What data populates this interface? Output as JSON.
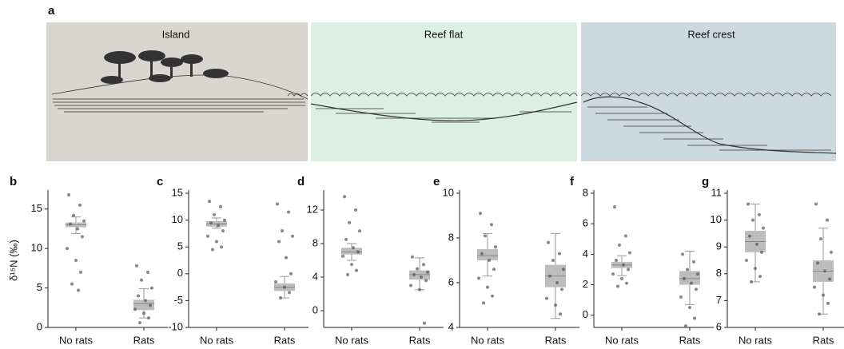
{
  "illustration": {
    "label": "a",
    "zones": [
      "Island",
      "Reef flat",
      "Reef crest"
    ]
  },
  "chart_data": [
    {
      "type": "box",
      "label": "b",
      "ylabel": "δ¹⁵N (‰)",
      "categories": [
        "No rats",
        "Rats"
      ],
      "ylim": [
        0,
        17
      ],
      "yticks": [
        0,
        5,
        10,
        15
      ],
      "color": "#bdbdbd",
      "point_color": "#555555",
      "groups": [
        {
          "q1": 12.7,
          "median": 13,
          "q3": 13.3,
          "whislo": 11.9,
          "whishi": 14,
          "points": [
            16.8,
            15.5,
            14.2,
            13.5,
            13.1,
            12.5,
            11.5,
            10,
            8.5,
            7,
            5.5,
            4.7
          ]
        },
        {
          "q1": 2.2,
          "median": 3,
          "q3": 3.5,
          "whislo": 1.2,
          "whishi": 4.9,
          "points": [
            7.8,
            7,
            6,
            5,
            4,
            3.4,
            2.8,
            2.3,
            1.8,
            1.2,
            0.6
          ]
        }
      ]
    },
    {
      "type": "box",
      "label": "c",
      "categories": [
        "No rats",
        "Rats"
      ],
      "ylim": [
        -10,
        15
      ],
      "yticks": [
        -10,
        -5,
        0,
        5,
        10,
        15
      ],
      "color": "#bdbdbd",
      "point_color": "#555555",
      "groups": [
        {
          "q1": 8.8,
          "median": 9.3,
          "q3": 9.8,
          "whislo": 8.5,
          "whishi": 10.4,
          "points": [
            13.5,
            12.5,
            11,
            10,
            9.5,
            9,
            8,
            7,
            6,
            5,
            4.5
          ]
        },
        {
          "q1": -3.2,
          "median": -2.5,
          "q3": -1.8,
          "whislo": -4.5,
          "whishi": -0.5,
          "points": [
            13,
            11.5,
            8,
            7,
            6,
            3,
            0,
            -1.5,
            -2.5,
            -3.5,
            -4.5
          ]
        }
      ]
    },
    {
      "type": "box",
      "label": "d",
      "categories": [
        "No rats",
        "Rats"
      ],
      "ylim": [
        -2,
        14
      ],
      "yticks": [
        0,
        4,
        8,
        12
      ],
      "color": "#bdbdbd",
      "point_color": "#555555",
      "groups": [
        {
          "q1": 6.7,
          "median": 7,
          "q3": 7.5,
          "whislo": 6,
          "whishi": 8,
          "points": [
            13.6,
            12,
            10.5,
            9.5,
            8.5,
            7.5,
            7,
            6.5,
            5.5,
            4.8,
            4.3
          ]
        },
        {
          "q1": 3.7,
          "median": 4.3,
          "q3": 4.8,
          "whislo": 2.5,
          "whishi": 6.3,
          "points": [
            6.4,
            5.5,
            5,
            4.6,
            4.3,
            4,
            3.6,
            3,
            2.5,
            -1.5
          ]
        }
      ]
    },
    {
      "type": "box",
      "label": "e",
      "categories": [
        "No rats",
        "Rats"
      ],
      "ylim": [
        4,
        10
      ],
      "yticks": [
        4,
        6,
        8,
        10
      ],
      "color": "#bdbdbd",
      "point_color": "#555555",
      "groups": [
        {
          "q1": 7,
          "median": 7.2,
          "q3": 7.5,
          "whislo": 6.3,
          "whishi": 8.2,
          "points": [
            9.1,
            8.6,
            8.1,
            7.6,
            7.3,
            7,
            6.6,
            6.2,
            5.8,
            5.4,
            5.1
          ]
        },
        {
          "q1": 5.8,
          "median": 6.3,
          "q3": 6.8,
          "whislo": 4.4,
          "whishi": 8.2,
          "points": [
            7.8,
            7.3,
            7,
            6.6,
            6.3,
            6,
            5.7,
            5.3,
            5,
            4.6
          ]
        }
      ]
    },
    {
      "type": "box",
      "label": "f",
      "categories": [
        "No rats",
        "Rats"
      ],
      "ylim": [
        -0.8,
        8
      ],
      "yticks": [
        0,
        2,
        4,
        6,
        8
      ],
      "color": "#bdbdbd",
      "point_color": "#555555",
      "groups": [
        {
          "q1": 3.1,
          "median": 3.3,
          "q3": 3.5,
          "whislo": 2.6,
          "whishi": 3.9,
          "points": [
            7.1,
            5.2,
            4.6,
            4.1,
            3.6,
            3.3,
            3,
            2.7,
            2.4,
            2.1,
            1.9
          ]
        },
        {
          "q1": 2,
          "median": 2.4,
          "q3": 2.9,
          "whislo": 0.7,
          "whishi": 4.2,
          "points": [
            4,
            3.5,
            3,
            2.7,
            2.4,
            2.1,
            1.7,
            1.2,
            0.5,
            -0.2,
            -0.7
          ]
        }
      ]
    },
    {
      "type": "box",
      "label": "g",
      "categories": [
        "No rats",
        "Rats"
      ],
      "ylim": [
        6,
        11
      ],
      "yticks": [
        6,
        7,
        8,
        9,
        10,
        11
      ],
      "color": "#bdbdbd",
      "point_color": "#555555",
      "groups": [
        {
          "q1": 8.8,
          "median": 9.2,
          "q3": 9.6,
          "whislo": 7.7,
          "whishi": 10.6,
          "points": [
            10.6,
            10.2,
            10,
            9.7,
            9.4,
            9.1,
            8.8,
            8.5,
            8.2,
            7.9,
            7.7
          ]
        },
        {
          "q1": 7.7,
          "median": 8.1,
          "q3": 8.5,
          "whislo": 6.5,
          "whishi": 9.7,
          "points": [
            10.6,
            10,
            9.3,
            8.8,
            8.4,
            8.1,
            7.8,
            7.5,
            7.2,
            6.9,
            6.5
          ]
        }
      ]
    }
  ]
}
